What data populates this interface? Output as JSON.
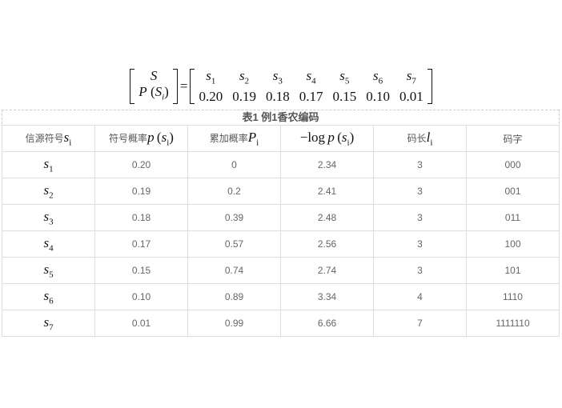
{
  "formula": {
    "lhs_top": "S",
    "lhs_bottom": "P",
    "lhs_sub": "i",
    "lhs_inner": "S",
    "symbols": [
      "1",
      "2",
      "3",
      "4",
      "5",
      "6",
      "7"
    ],
    "probs": [
      "0.20",
      "0.19",
      "0.18",
      "0.17",
      "0.15",
      "0.10",
      "0.01"
    ]
  },
  "table": {
    "caption": "表1 例1香农编码",
    "headers": [
      "信源符号",
      "符号概率",
      "累加概率",
      "−log",
      "码长",
      "码字"
    ],
    "rows": [
      {
        "sub": "1",
        "p": "0.20",
        "P": "0",
        "log": "2.34",
        "len": "3",
        "code": "000"
      },
      {
        "sub": "2",
        "p": "0.19",
        "P": "0.2",
        "log": "2.41",
        "len": "3",
        "code": "001"
      },
      {
        "sub": "3",
        "p": "0.18",
        "P": "0.39",
        "log": "2.48",
        "len": "3",
        "code": "011"
      },
      {
        "sub": "4",
        "p": "0.17",
        "P": "0.57",
        "log": "2.56",
        "len": "3",
        "code": "100"
      },
      {
        "sub": "5",
        "p": "0.15",
        "P": "0.74",
        "log": "2.74",
        "len": "3",
        "code": "101"
      },
      {
        "sub": "6",
        "p": "0.10",
        "P": "0.89",
        "log": "3.34",
        "len": "4",
        "code": "1110"
      },
      {
        "sub": "7",
        "p": "0.01",
        "P": "0.99",
        "log": "6.66",
        "len": "7",
        "code": "1111110"
      }
    ]
  }
}
